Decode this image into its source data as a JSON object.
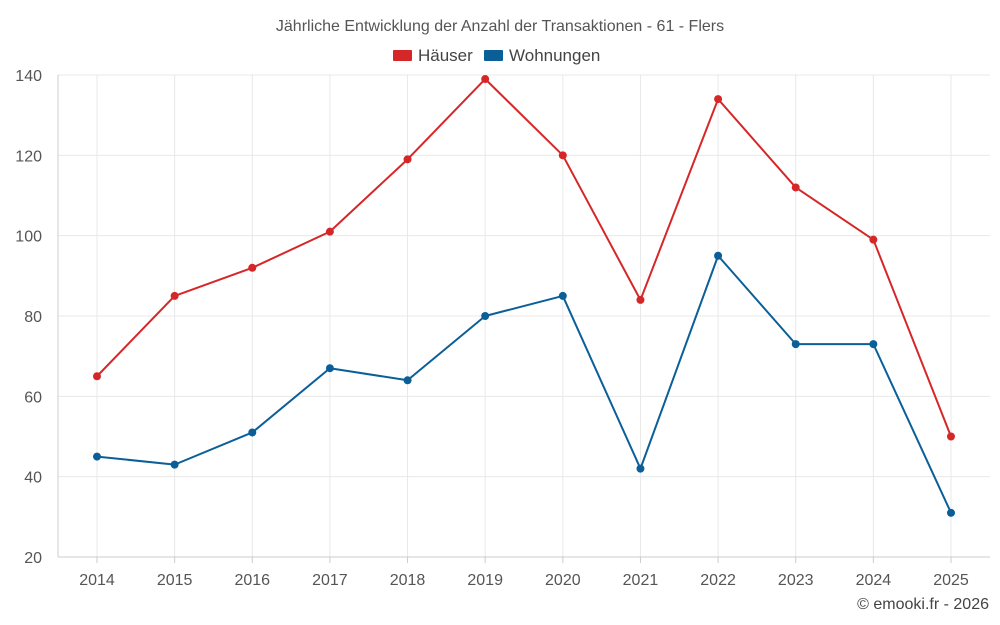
{
  "chart_data": {
    "type": "line",
    "title": "Jährliche Entwicklung der Anzahl der Transaktionen - 61 - Flers",
    "categories": [
      "2014",
      "2015",
      "2016",
      "2017",
      "2018",
      "2019",
      "2020",
      "2021",
      "2022",
      "2023",
      "2024",
      "2025"
    ],
    "series": [
      {
        "name": "Häuser",
        "color": "#d62728",
        "values": [
          65,
          85,
          92,
          101,
          119,
          139,
          120,
          84,
          134,
          112,
          99,
          50
        ]
      },
      {
        "name": "Wohnungen",
        "color": "#0b5f99",
        "values": [
          45,
          43,
          51,
          67,
          64,
          80,
          85,
          42,
          95,
          73,
          73,
          31
        ]
      }
    ],
    "ylim": [
      20,
      140
    ],
    "yticks": [
      20,
      40,
      60,
      80,
      100,
      120,
      140
    ],
    "xlabel": "",
    "ylabel": "",
    "grid": true,
    "legend": "top-center"
  },
  "credit": "© emooki.fr - 2026"
}
